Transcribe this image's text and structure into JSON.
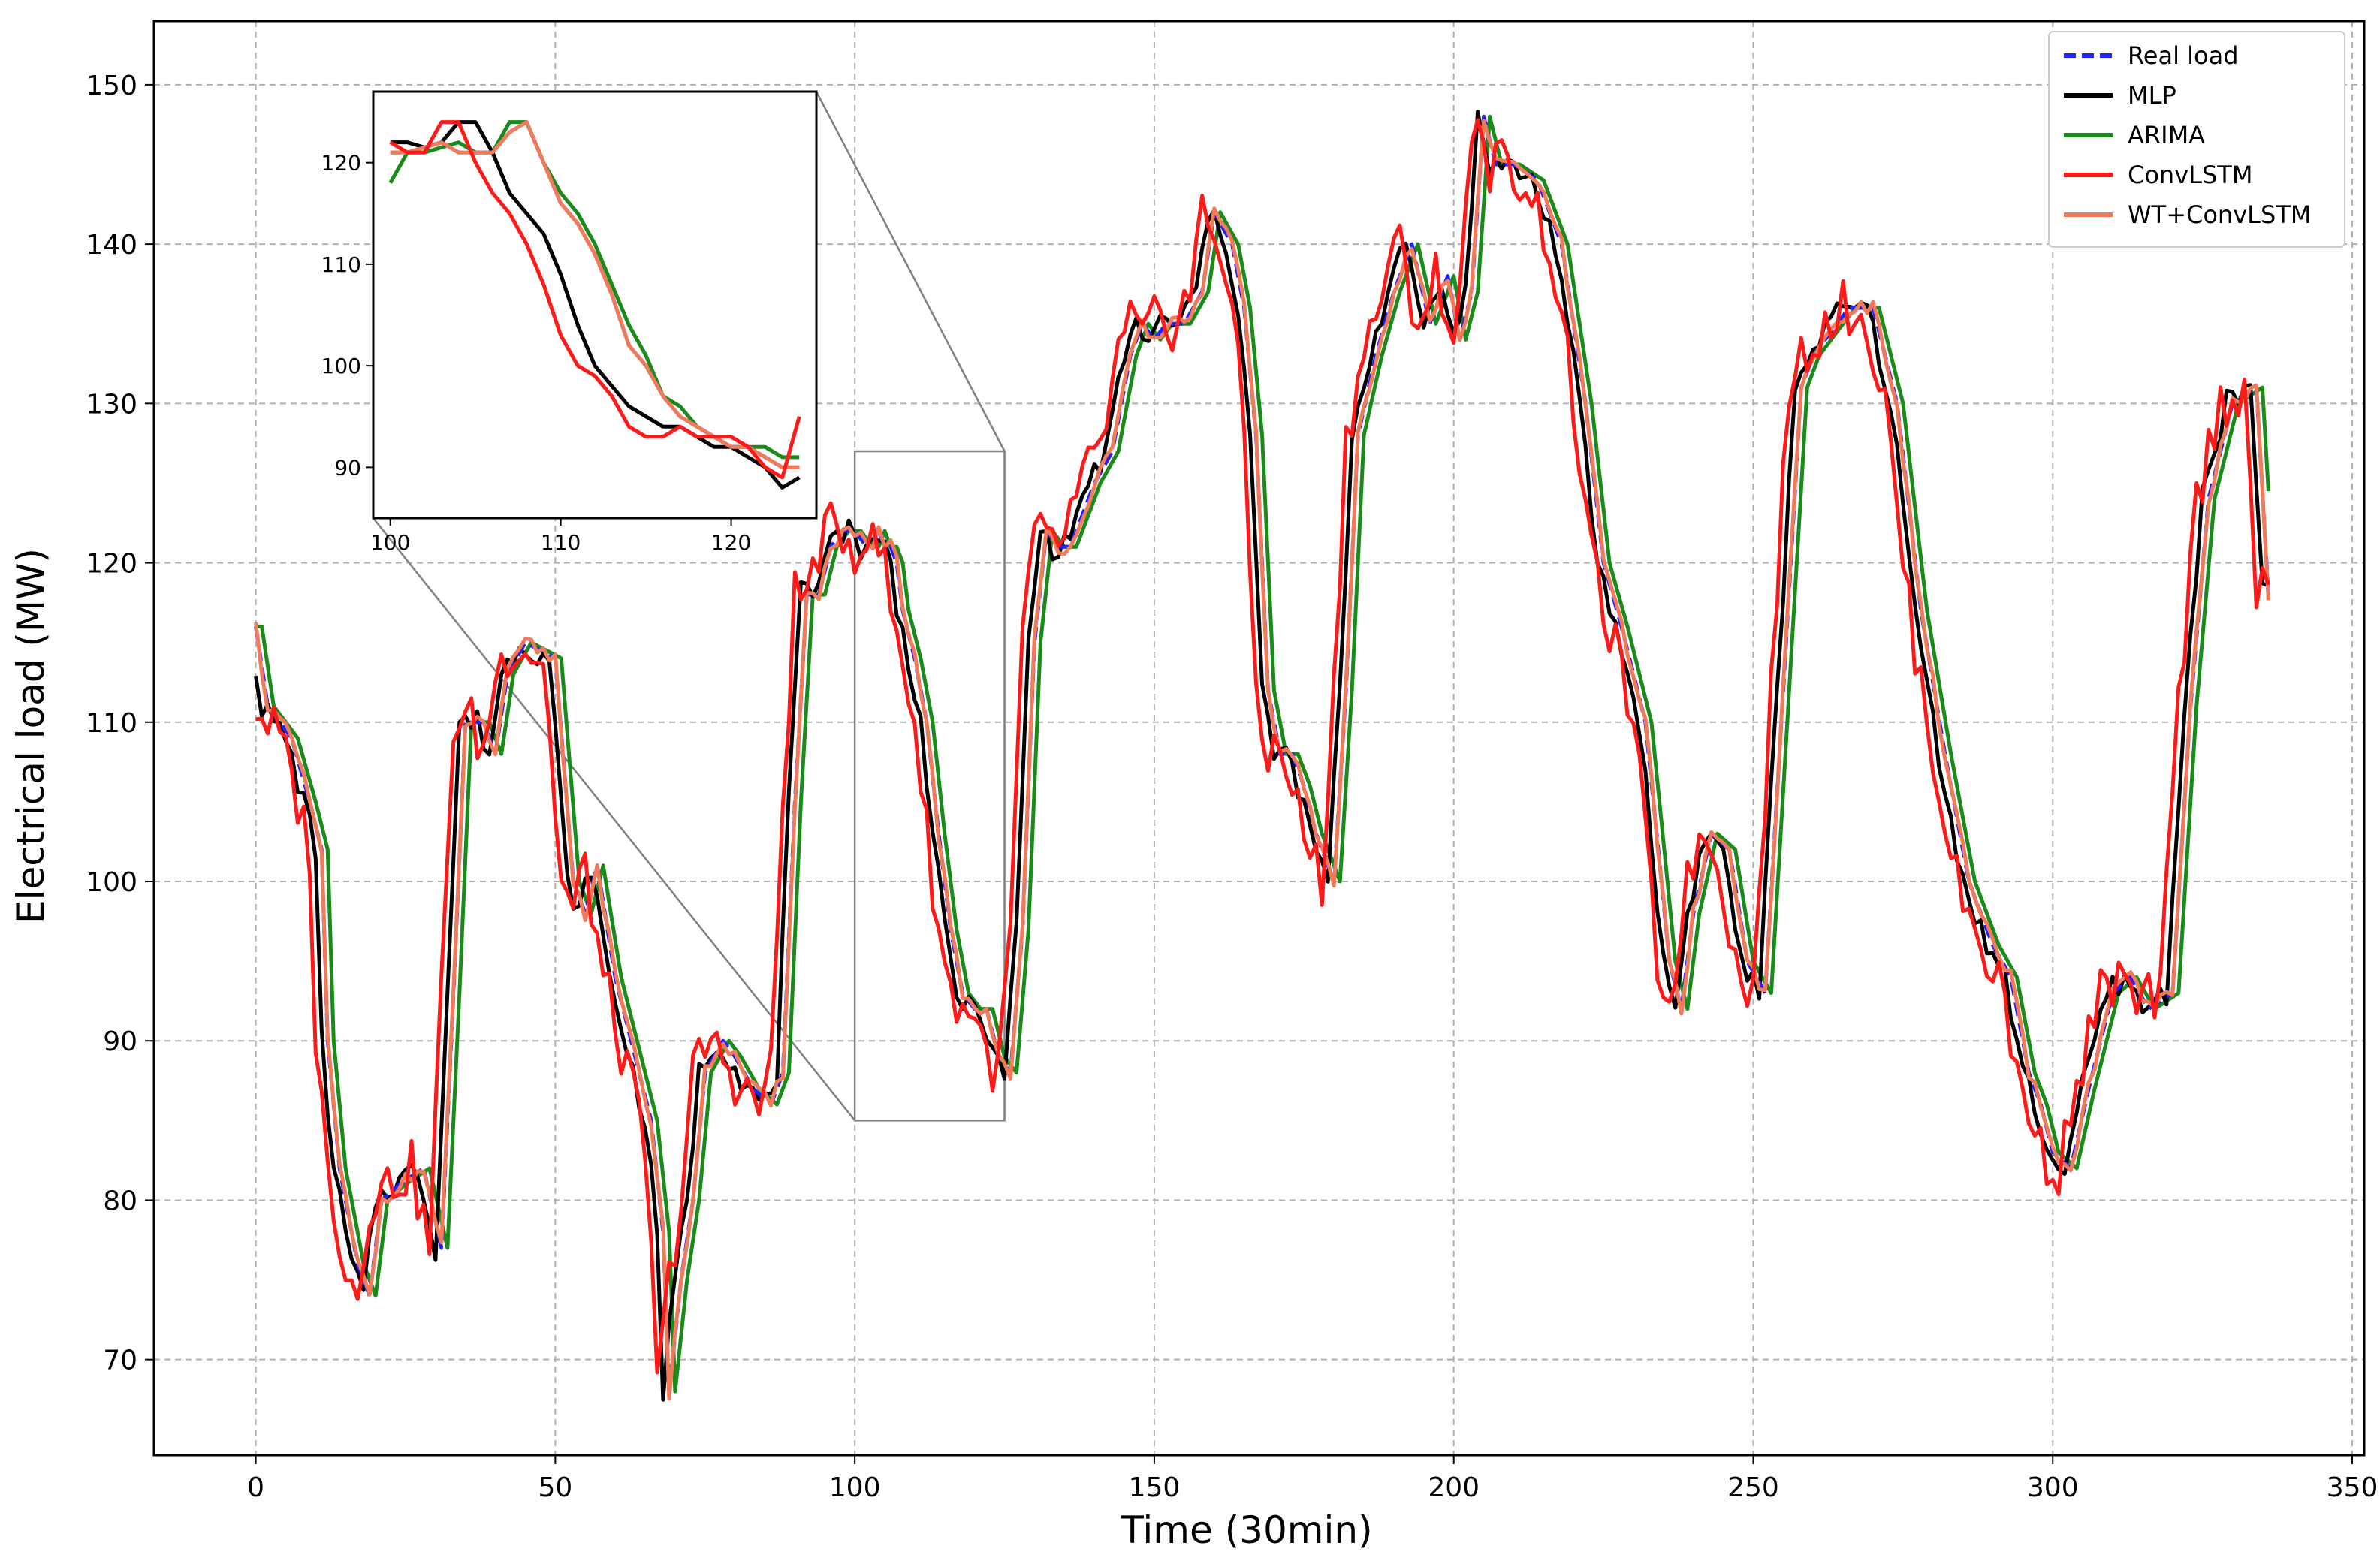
{
  "chart_data": [
    {
      "type": "line",
      "title": "",
      "xlabel": "Time (30min)",
      "ylabel": "Electrical load (MW)",
      "xlim": [
        -17,
        352
      ],
      "ylim": [
        64,
        154
      ],
      "xticks": [
        0,
        50,
        100,
        150,
        200,
        250,
        300,
        350
      ],
      "yticks": [
        70,
        80,
        90,
        100,
        110,
        120,
        130,
        140,
        150
      ],
      "grid": true,
      "legend_position": "top-right",
      "zoom_box": {
        "x": [
          100,
          125
        ],
        "y": [
          85,
          127
        ]
      },
      "series": [
        {
          "name": "Real load",
          "color": "#1f1fff",
          "style": "dashed",
          "offset": 0
        },
        {
          "name": "MLP",
          "color": "#000000",
          "style": "solid",
          "offset": -1
        },
        {
          "name": "ARIMA",
          "color": "#1a8a1a",
          "style": "solid",
          "offset": 1
        },
        {
          "name": "ConvLSTM",
          "color": "#ff1a1a",
          "style": "solid",
          "offset": -2
        },
        {
          "name": "WT+ConvLSTM",
          "color": "#f07a5a",
          "style": "solid",
          "offset": 0
        }
      ],
      "keyframes_x": [
        0,
        2,
        4,
        6,
        9,
        11,
        12,
        14,
        16,
        17,
        19,
        21,
        24,
        28,
        31,
        33,
        35,
        38,
        40,
        42,
        45,
        50,
        53,
        55,
        57,
        60,
        64,
        66,
        68,
        69,
        71,
        73,
        75,
        78,
        80,
        83,
        86,
        88,
        90,
        92,
        94,
        96,
        98,
        100,
        102,
        103,
        104,
        105,
        106,
        107,
        108,
        110,
        112,
        114,
        116,
        118,
        120,
        122,
        124,
        126,
        128,
        130,
        132,
        134,
        136,
        140,
        143,
        146,
        148,
        150,
        152,
        155,
        158,
        160,
        163,
        165,
        167,
        169,
        171,
        173,
        175,
        177,
        180,
        182,
        184,
        187,
        190,
        193,
        196,
        199,
        201,
        203,
        205,
        207,
        210,
        214,
        218,
        222,
        225,
        228,
        232,
        236,
        238,
        240,
        243,
        246,
        249,
        252,
        255,
        258,
        260,
        262,
        266,
        270,
        274,
        278,
        282,
        286,
        290,
        293,
        296,
        298,
        300,
        303,
        306,
        310,
        313,
        316,
        320,
        323,
        326,
        330,
        334,
        336
      ],
      "keyframes_y": [
        116,
        111,
        110,
        109,
        105,
        102,
        90,
        82,
        78,
        76,
        74,
        80,
        81,
        82,
        77,
        93,
        110,
        110,
        108,
        113,
        115,
        114,
        100,
        98,
        101,
        94,
        88,
        85,
        78,
        68,
        75,
        80,
        88,
        90,
        89,
        87,
        86,
        88,
        105,
        118,
        118,
        121,
        122,
        122,
        121,
        121,
        122,
        121,
        121,
        120,
        117,
        114,
        110,
        103,
        97,
        93,
        92,
        92,
        89,
        88,
        97,
        115,
        122,
        121,
        121,
        125,
        127,
        133,
        135,
        134,
        135,
        135,
        137,
        142,
        140,
        136,
        128,
        112,
        108,
        108,
        106,
        103,
        100,
        112,
        128,
        133,
        137,
        140,
        135,
        138,
        134,
        137,
        148,
        145,
        145,
        144,
        140,
        130,
        120,
        116,
        110,
        95,
        92,
        98,
        103,
        102,
        95,
        93,
        112,
        131,
        133,
        134,
        136,
        136,
        130,
        117,
        108,
        100,
        96,
        94,
        88,
        86,
        83,
        82,
        87,
        93,
        94,
        92,
        93,
        111,
        124,
        130,
        131,
        118
      ],
      "zoom_x": [
        100,
        101,
        102,
        103,
        104,
        105,
        106,
        107,
        108,
        109,
        110,
        111,
        112,
        113,
        114,
        115,
        116,
        117,
        118,
        119,
        120,
        121,
        122,
        123,
        124
      ],
      "zoom_series": [
        {
          "name": "Real load",
          "values": [
            121,
            121,
            121.5,
            122,
            121,
            121,
            121,
            123,
            124,
            120,
            116,
            114,
            111,
            107,
            102,
            100,
            97,
            95,
            94,
            93,
            92,
            92,
            91,
            90,
            90
          ]
        },
        {
          "name": "MLP",
          "values": [
            122,
            122,
            121.5,
            122,
            124,
            124,
            121,
            117,
            115,
            113,
            109,
            104,
            100,
            98,
            96,
            95,
            94,
            94,
            93,
            92,
            92,
            91,
            90,
            88,
            89
          ]
        },
        {
          "name": "ARIMA",
          "values": [
            118,
            121,
            121,
            121.5,
            122,
            121,
            121,
            124,
            124,
            120,
            117,
            115,
            112,
            108,
            104,
            101,
            97,
            96,
            94,
            93,
            92,
            92,
            92,
            91,
            91
          ]
        },
        {
          "name": "ConvLSTM",
          "values": [
            122,
            121,
            121,
            124,
            124,
            120,
            117,
            115,
            112,
            108,
            103,
            100,
            99,
            97,
            94,
            93,
            93,
            94,
            93,
            93,
            93,
            92,
            90,
            89,
            95
          ]
        },
        {
          "name": "WT+ConvLSTM",
          "values": [
            121,
            121,
            121.5,
            122,
            121,
            121,
            121,
            123,
            124,
            120,
            116,
            114,
            111,
            107,
            102,
            100,
            97,
            95,
            94,
            93,
            92,
            92,
            91,
            90,
            90
          ]
        }
      ],
      "zoom_xlim": [
        99,
        125
      ],
      "zoom_ylim": [
        85,
        127
      ],
      "zoom_xticks": [
        100,
        110,
        120
      ],
      "zoom_yticks": [
        90,
        100,
        110,
        120
      ]
    }
  ]
}
